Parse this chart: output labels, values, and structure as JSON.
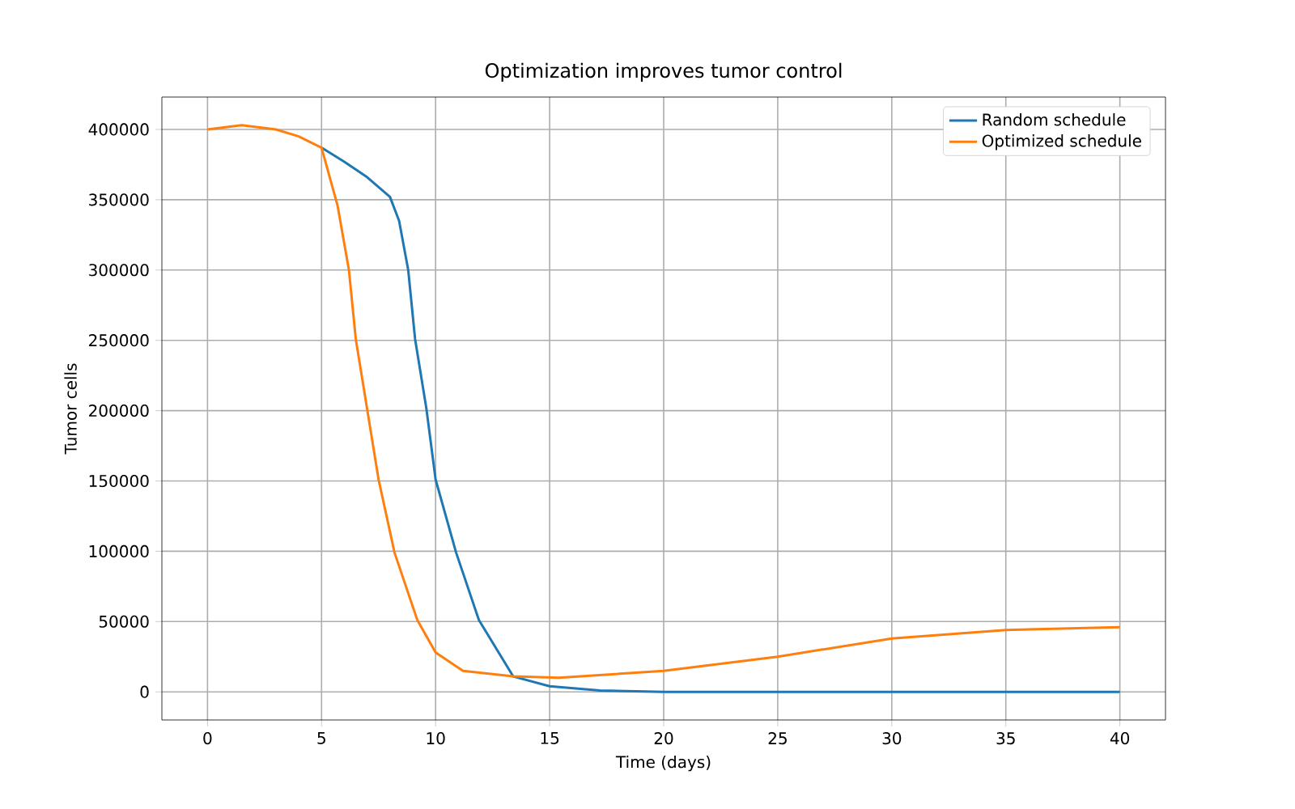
{
  "chart_data": {
    "type": "line",
    "title": "Optimization improves tumor control",
    "xlabel": "Time (days)",
    "ylabel": "Tumor cells",
    "xlim": [
      -2,
      42
    ],
    "xticks": [
      0,
      5,
      10,
      15,
      20,
      25,
      30,
      35,
      40
    ],
    "ylim": [
      -20000,
      423000
    ],
    "yticks": [
      0,
      50000,
      100000,
      150000,
      200000,
      250000,
      300000,
      350000,
      400000
    ],
    "grid": true,
    "legend": "top right",
    "series": [
      {
        "name": "Random schedule",
        "color": "#1f77b4",
        "x": [
          5,
          6,
          7,
          8,
          8.4,
          8.8,
          9.1,
          9.6,
          10,
          10.9,
          11.9,
          13.4,
          15,
          17.2,
          20,
          25,
          30,
          35,
          40
        ],
        "values": [
          387000,
          377000,
          366000,
          352000,
          335000,
          300000,
          251000,
          201000,
          151000,
          99000,
          51000,
          11000,
          4000,
          1000,
          0,
          0,
          0,
          0,
          0
        ]
      },
      {
        "name": "Optimized schedule",
        "color": "#ff7f0e",
        "x": [
          0,
          1,
          1.5,
          2,
          3,
          4,
          5,
          5.7,
          6.2,
          6.5,
          7,
          7.5,
          8.2,
          9.2,
          10,
          11.2,
          13.4,
          15.4,
          20,
          25,
          30,
          35,
          40
        ],
        "values": [
          400000,
          402000,
          403000,
          402000,
          400000,
          395000,
          387000,
          346000,
          300000,
          251000,
          201000,
          151000,
          99000,
          51000,
          28000,
          15000,
          11000,
          10000,
          15000,
          25000,
          38000,
          44000,
          46000
        ]
      }
    ]
  }
}
